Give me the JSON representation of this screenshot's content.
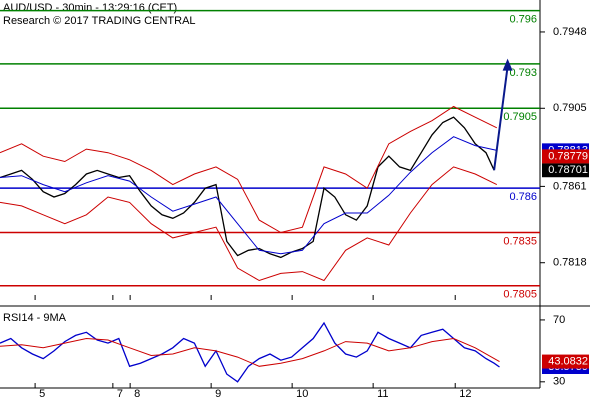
{
  "header": {
    "title": "AUD/USD - 30min - 13:29:16 (CET)",
    "subtitle": "Research © 2017 TRADING CENTRAL"
  },
  "chart_data": [
    {
      "type": "line",
      "xlim": [
        0,
        100
      ],
      "ylim": [
        0.7797,
        0.7966
      ],
      "yticks": [
        0.7818,
        0.7861,
        0.7905,
        0.7948
      ],
      "xticks": [
        {
          "value": 6.5,
          "label": "5"
        },
        {
          "value": 20.9,
          "label": "7"
        },
        {
          "value": 24.1,
          "label": "8"
        },
        {
          "value": 39.1,
          "label": "9"
        },
        {
          "value": 54.1,
          "label": "10"
        },
        {
          "value": 69.1,
          "label": "11"
        },
        {
          "value": 84.3,
          "label": "12"
        }
      ],
      "series": [
        {
          "color": "#000000",
          "x": [
            0,
            2,
            4,
            6,
            8,
            10,
            12,
            14,
            16,
            18,
            20,
            22,
            24,
            26,
            28,
            30,
            32,
            34,
            36,
            38,
            40,
            42,
            44,
            46,
            48,
            50,
            52,
            54,
            56,
            58,
            60,
            62,
            64,
            66,
            68,
            70,
            72,
            74,
            76,
            78,
            80,
            82,
            84,
            86,
            88,
            90,
            91.5
          ],
          "values": [
            0.7866,
            0.7868,
            0.787,
            0.7865,
            0.7858,
            0.7855,
            0.7857,
            0.7862,
            0.7868,
            0.787,
            0.7868,
            0.7866,
            0.7867,
            0.7858,
            0.785,
            0.7845,
            0.7843,
            0.7846,
            0.7852,
            0.786,
            0.7862,
            0.783,
            0.7822,
            0.7825,
            0.7826,
            0.7823,
            0.7821,
            0.7824,
            0.7826,
            0.783,
            0.786,
            0.7855,
            0.7845,
            0.7842,
            0.785,
            0.7872,
            0.7878,
            0.7872,
            0.787,
            0.788,
            0.789,
            0.7897,
            0.79,
            0.7894,
            0.7885,
            0.788,
            0.78701
          ]
        },
        {
          "color": "#cc0000",
          "x": [
            0,
            4,
            8,
            12,
            16,
            20,
            24,
            28,
            32,
            36,
            40,
            44,
            48,
            52,
            56,
            60,
            64,
            68,
            72,
            76,
            80,
            84,
            88,
            92
          ],
          "values": [
            0.788,
            0.7885,
            0.7878,
            0.7875,
            0.7882,
            0.788,
            0.7876,
            0.787,
            0.7862,
            0.7868,
            0.7872,
            0.7865,
            0.7842,
            0.7835,
            0.7838,
            0.7872,
            0.7868,
            0.786,
            0.7885,
            0.7892,
            0.7898,
            0.7906,
            0.79,
            0.7894
          ]
        },
        {
          "color": "#cc0000",
          "x": [
            0,
            4,
            8,
            12,
            16,
            20,
            24,
            28,
            32,
            36,
            40,
            44,
            48,
            52,
            56,
            60,
            64,
            68,
            72,
            76,
            80,
            84,
            88,
            92
          ],
          "values": [
            0.7852,
            0.785,
            0.7845,
            0.784,
            0.7845,
            0.7855,
            0.7852,
            0.784,
            0.7832,
            0.7835,
            0.7838,
            0.7815,
            0.7808,
            0.7812,
            0.7813,
            0.7808,
            0.7825,
            0.7832,
            0.7828,
            0.7846,
            0.7862,
            0.7872,
            0.7868,
            0.7862
          ]
        },
        {
          "color": "#0000cc",
          "x": [
            0,
            4,
            8,
            12,
            16,
            20,
            24,
            28,
            32,
            36,
            40,
            44,
            48,
            52,
            56,
            60,
            64,
            68,
            72,
            76,
            80,
            84,
            88,
            92
          ],
          "values": [
            0.7866,
            0.7867,
            0.7862,
            0.7858,
            0.7863,
            0.7867,
            0.7864,
            0.7855,
            0.7847,
            0.7851,
            0.7855,
            0.784,
            0.7825,
            0.7823,
            0.7825,
            0.784,
            0.7846,
            0.7846,
            0.7856,
            0.7869,
            0.788,
            0.7889,
            0.7884,
            0.78813
          ]
        }
      ],
      "levels": [
        {
          "value": 0.796,
          "color": "#008000"
        },
        {
          "value": 0.793,
          "color": "#008000"
        },
        {
          "value": 0.7905,
          "color": "#008000"
        },
        {
          "value": 0.786,
          "color": "#0000cc"
        },
        {
          "value": 0.7835,
          "color": "#cc0000"
        },
        {
          "value": 0.7805,
          "color": "#cc0000"
        }
      ],
      "markers": [
        {
          "value": 0.78779,
          "color": "#cc0000"
        }
      ],
      "forecast": {
        "x": [
          91.5,
          94
        ],
        "values": [
          0.78701,
          0.7933
        ],
        "color": "#0a1a8c"
      }
    },
    {
      "type": "line",
      "title": "RSI14 - 9MA",
      "xlim": [
        0,
        100
      ],
      "ylim": [
        26,
        79
      ],
      "yticks": [
        30,
        70
      ],
      "series": [
        {
          "color": "#0000cc",
          "x": [
            0,
            2,
            4,
            6,
            8,
            10,
            12,
            14,
            16,
            18,
            20,
            22,
            24,
            26,
            28,
            30,
            32,
            34,
            36,
            38,
            40,
            42,
            44,
            46,
            48,
            50,
            52,
            54,
            56,
            58,
            60,
            62,
            64,
            66,
            68,
            70,
            72,
            74,
            76,
            78,
            80,
            82,
            84,
            86,
            88,
            90,
            91.5,
            92.5
          ],
          "values": [
            55,
            58,
            52,
            48,
            45,
            50,
            56,
            60,
            62,
            57,
            55,
            58,
            40,
            42,
            45,
            48,
            52,
            58,
            55,
            40,
            50,
            35,
            30,
            40,
            45,
            48,
            44,
            46,
            52,
            58,
            68,
            55,
            48,
            46,
            50,
            62,
            58,
            55,
            52,
            60,
            62,
            64,
            58,
            52,
            50,
            45,
            42,
            39.5759
          ]
        },
        {
          "color": "#cc0000",
          "x": [
            0,
            4,
            8,
            12,
            16,
            20,
            24,
            28,
            32,
            36,
            40,
            44,
            48,
            52,
            56,
            60,
            64,
            68,
            72,
            76,
            80,
            84,
            88,
            92.5
          ],
          "values": [
            53,
            54,
            52,
            55,
            58,
            57,
            52,
            47,
            48,
            52,
            50,
            46,
            40,
            42,
            45,
            50,
            56,
            55,
            50,
            52,
            56,
            58,
            52,
            43.0832
          ]
        }
      ]
    }
  ]
}
